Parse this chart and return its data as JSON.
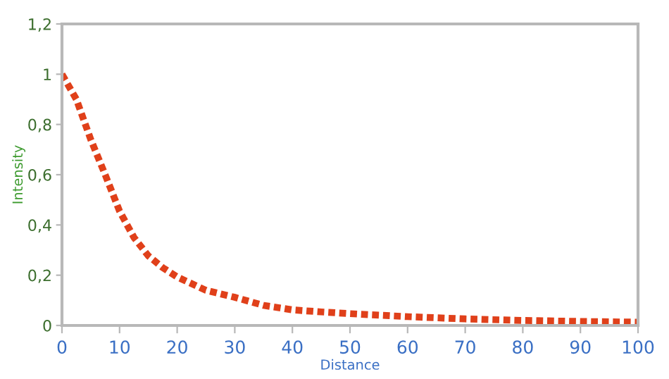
{
  "chart_data": {
    "type": "line",
    "xlabel": "Distance",
    "ylabel": "Intensity",
    "x": [
      0,
      2.5,
      5,
      7.5,
      10,
      12.5,
      15,
      17.5,
      20,
      25,
      30,
      35,
      40,
      45,
      50,
      60,
      70,
      80,
      90,
      100
    ],
    "series": [
      {
        "color": "#e0401a",
        "values": [
          1,
          0.9,
          0.74,
          0.6,
          0.455,
          0.35,
          0.277,
          0.23,
          0.193,
          0.14,
          0.112,
          0.08,
          0.062,
          0.054,
          0.047,
          0.035,
          0.026,
          0.02,
          0.016,
          0.013
        ]
      }
    ],
    "xlim": [
      0,
      100
    ],
    "xticks": [
      0,
      10,
      20,
      30,
      40,
      50,
      60,
      70,
      80,
      90,
      100
    ],
    "ylim": [
      0,
      1.2
    ],
    "yticks": [
      {
        "value": 0,
        "label": "0"
      },
      {
        "value": 0.2,
        "label": "0,2"
      },
      {
        "value": 0.4,
        "label": "0,4"
      },
      {
        "value": 0.6,
        "label": "0,6"
      },
      {
        "value": 0.8,
        "label": "0,8"
      },
      {
        "value": 1,
        "label": "1"
      },
      {
        "value": 1.2,
        "label": "1,2"
      }
    ],
    "grid": false,
    "marker": "none",
    "line_style": "dotted"
  }
}
